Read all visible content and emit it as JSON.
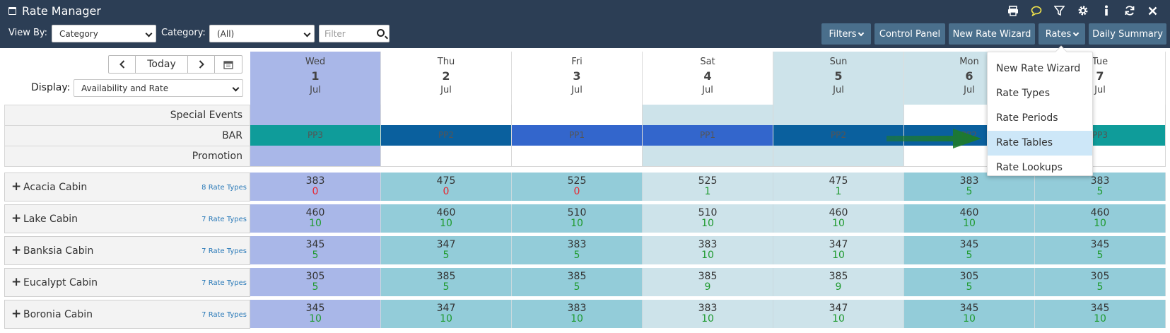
{
  "app": {
    "title": "Rate Manager"
  },
  "header": {
    "icons": [
      "print-icon",
      "chat-icon",
      "filter-icon",
      "gear-icon",
      "info-icon",
      "refresh-icon",
      "close-icon"
    ],
    "view_by_label": "View By:",
    "view_by_value": "Category",
    "category_label": "Category:",
    "category_value": "(All)",
    "filter_placeholder": "Filter",
    "buttons": {
      "filters": "Filters",
      "control_panel": "Control Panel",
      "new_rate_wizard": "New Rate Wizard",
      "rates": "Rates",
      "daily_summary": "Daily Summary"
    }
  },
  "controls": {
    "today_label": "Today",
    "display_label": "Display:",
    "display_value": "Availability and Rate"
  },
  "days": [
    {
      "name": "Wed",
      "date": "1",
      "month": "Jul"
    },
    {
      "name": "Thu",
      "date": "2",
      "month": "Jul"
    },
    {
      "name": "Fri",
      "date": "3",
      "month": "Jul"
    },
    {
      "name": "Sat",
      "date": "4",
      "month": "Jul"
    },
    {
      "name": "Sun",
      "date": "5",
      "month": "Jul"
    },
    {
      "name": "Mon",
      "date": "6",
      "month": "Jul"
    },
    {
      "name": "Tue",
      "date": "7",
      "month": "Jul"
    }
  ],
  "info_rows": {
    "special_events": "Special Events",
    "bar": "BAR",
    "promotion": "Promotion"
  },
  "bar_values": [
    "PP3",
    "PP2",
    "PP1",
    "PP1",
    "PP2",
    "PP2",
    "PP3"
  ],
  "colors": {
    "header_bg": "#2c3e55",
    "button_bg": "#4a6f8c",
    "today_col": "#a9b7e8",
    "weekend_col": "#cde3ea",
    "weekday_col": "#93ccd9",
    "pp3": "#0f9c9a",
    "pp2": "#0a609e",
    "pp1": "#3366cc",
    "menu_highlight": "#cde7f8",
    "arrow": "#1e7a2a"
  },
  "categories": [
    {
      "name": "Acacia Cabin",
      "rate_types": "8 Rate Types",
      "rates": [
        "383",
        "475",
        "525",
        "525",
        "475",
        "383",
        "383"
      ],
      "avail": [
        "0",
        "0",
        "0",
        "1",
        "1",
        "5",
        "5"
      ]
    },
    {
      "name": "Lake Cabin",
      "rate_types": "7 Rate Types",
      "rates": [
        "460",
        "460",
        "510",
        "510",
        "460",
        "460",
        "460"
      ],
      "avail": [
        "10",
        "10",
        "10",
        "10",
        "10",
        "10",
        "10"
      ]
    },
    {
      "name": "Banksia Cabin",
      "rate_types": "7 Rate Types",
      "rates": [
        "345",
        "347",
        "383",
        "383",
        "347",
        "345",
        "345"
      ],
      "avail": [
        "5",
        "5",
        "5",
        "10",
        "10",
        "5",
        "5"
      ]
    },
    {
      "name": "Eucalypt Cabin",
      "rate_types": "7 Rate Types",
      "rates": [
        "305",
        "385",
        "385",
        "385",
        "385",
        "305",
        "305"
      ],
      "avail": [
        "5",
        "5",
        "5",
        "9",
        "9",
        "5",
        "5"
      ]
    },
    {
      "name": "Boronia Cabin",
      "rate_types": "7 Rate Types",
      "rates": [
        "345",
        "347",
        "383",
        "383",
        "347",
        "345",
        "345"
      ],
      "avail": [
        "10",
        "10",
        "10",
        "10",
        "10",
        "10",
        "10"
      ]
    }
  ],
  "rates_menu": {
    "items": [
      "New Rate Wizard",
      "Rate Types",
      "Rate Periods",
      "Rate Tables",
      "Rate Lookups"
    ],
    "highlighted": "Rate Tables"
  }
}
